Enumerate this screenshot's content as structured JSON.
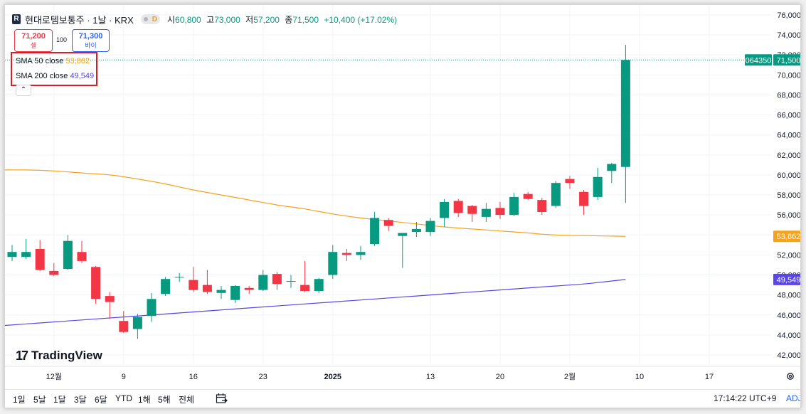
{
  "header": {
    "title": "현대로템보통주 · 1날 · KRX",
    "exchange_badge": "D",
    "open_label": "시",
    "open_value": "60,800",
    "high_label": "고",
    "high_value": "73,000",
    "low_label": "저",
    "low_value": "57,200",
    "close_label": "종",
    "close_value": "71,500",
    "change": "+10,400 (+17.02%)"
  },
  "trade": {
    "sell_price": "71,200",
    "sell_label": "셀",
    "spread": "100",
    "buy_price": "71,300",
    "buy_label": "바이"
  },
  "legend": {
    "sma50_name": "SMA 50 close",
    "sma50_value": "53,862",
    "sma50_color": "#f7a21b",
    "sma200_name": "SMA 200 close",
    "sma200_value": "49,549",
    "sma200_color": "#5b45e8"
  },
  "price_tags": {
    "countdown": "064350",
    "last": "71,500",
    "sma50": "53,862",
    "sma200": "49,549"
  },
  "brand": {
    "name": "TradingView"
  },
  "bottom_bar": {
    "ranges": [
      "1일",
      "5날",
      "1달",
      "3달",
      "6달",
      "YTD",
      "1해",
      "5해",
      "전체"
    ],
    "time": "17:14:22 UTC+9",
    "adj": "ADJ"
  },
  "colors": {
    "up": "#089981",
    "down": "#f23645",
    "sma50": "#f7a21b",
    "sma200": "#5b45e8"
  },
  "chart_data": {
    "type": "candlestick",
    "ylim": [
      41000,
      76600
    ],
    "y_ticks": [
      42000,
      44000,
      46000,
      48000,
      50000,
      52000,
      54000,
      56000,
      58000,
      60000,
      62000,
      64000,
      66000,
      68000,
      70000,
      72000,
      74000,
      76000
    ],
    "y_tick_labels": [
      "42,000",
      "44,000",
      "46,000",
      "48,000",
      "50,000",
      "52,000",
      "54,000",
      "56,000",
      "58,000",
      "60,000",
      "62,000",
      "64,000",
      "66,000",
      "68,000",
      "70,000",
      "72,000",
      "74,000",
      "76,000"
    ],
    "x_ticks": [
      {
        "label": "12월",
        "bar": 3
      },
      {
        "label": "9",
        "bar": 8
      },
      {
        "label": "16",
        "bar": 13
      },
      {
        "label": "23",
        "bar": 18
      },
      {
        "label": "2025",
        "bar": 23,
        "bold": true
      },
      {
        "label": "13",
        "bar": 30
      },
      {
        "label": "20",
        "bar": 35
      },
      {
        "label": "2월",
        "bar": 40
      },
      {
        "label": "10",
        "bar": 45
      },
      {
        "label": "17",
        "bar": 50
      }
    ],
    "candles": [
      {
        "o": 51800,
        "h": 53000,
        "l": 51400,
        "c": 52300
      },
      {
        "o": 51800,
        "h": 53600,
        "l": 51600,
        "c": 52300
      },
      {
        "o": 52600,
        "h": 53500,
        "l": 50400,
        "c": 50500
      },
      {
        "o": 50400,
        "h": 51200,
        "l": 49900,
        "c": 50000
      },
      {
        "o": 50600,
        "h": 54000,
        "l": 50500,
        "c": 53400
      },
      {
        "o": 52300,
        "h": 53400,
        "l": 51200,
        "c": 51400
      },
      {
        "o": 50800,
        "h": 50900,
        "l": 47100,
        "c": 47600
      },
      {
        "o": 47900,
        "h": 48300,
        "l": 45600,
        "c": 47300
      },
      {
        "o": 45400,
        "h": 46400,
        "l": 44200,
        "c": 44300
      },
      {
        "o": 44600,
        "h": 46100,
        "l": 43600,
        "c": 45800
      },
      {
        "o": 45900,
        "h": 48200,
        "l": 45300,
        "c": 47600
      },
      {
        "o": 48100,
        "h": 49800,
        "l": 47900,
        "c": 49600
      },
      {
        "o": 49800,
        "h": 50200,
        "l": 49300,
        "c": 49800
      },
      {
        "o": 49500,
        "h": 50800,
        "l": 48300,
        "c": 48500
      },
      {
        "o": 49000,
        "h": 50500,
        "l": 48100,
        "c": 48300
      },
      {
        "o": 48200,
        "h": 48900,
        "l": 47600,
        "c": 48500
      },
      {
        "o": 47500,
        "h": 49000,
        "l": 47200,
        "c": 48900
      },
      {
        "o": 48700,
        "h": 48900,
        "l": 48100,
        "c": 48500
      },
      {
        "o": 48500,
        "h": 50500,
        "l": 48400,
        "c": 50000
      },
      {
        "o": 50100,
        "h": 50300,
        "l": 48500,
        "c": 49100
      },
      {
        "o": 49400,
        "h": 50000,
        "l": 48700,
        "c": 49400
      },
      {
        "o": 49000,
        "h": 51400,
        "l": 48300,
        "c": 48400
      },
      {
        "o": 48400,
        "h": 49700,
        "l": 48200,
        "c": 49600
      },
      {
        "o": 50000,
        "h": 53000,
        "l": 49600,
        "c": 52300
      },
      {
        "o": 52200,
        "h": 52600,
        "l": 51400,
        "c": 52000
      },
      {
        "o": 52000,
        "h": 52900,
        "l": 51500,
        "c": 52300
      },
      {
        "o": 53100,
        "h": 56300,
        "l": 52900,
        "c": 55700
      },
      {
        "o": 55500,
        "h": 55700,
        "l": 54400,
        "c": 54900
      },
      {
        "o": 53900,
        "h": 54100,
        "l": 50700,
        "c": 54200
      },
      {
        "o": 54300,
        "h": 55300,
        "l": 53800,
        "c": 54600
      },
      {
        "o": 54300,
        "h": 55700,
        "l": 53900,
        "c": 55400
      },
      {
        "o": 55700,
        "h": 57600,
        "l": 54800,
        "c": 57300
      },
      {
        "o": 57400,
        "h": 57600,
        "l": 55800,
        "c": 56200
      },
      {
        "o": 56900,
        "h": 57000,
        "l": 55300,
        "c": 56100
      },
      {
        "o": 55800,
        "h": 57200,
        "l": 55300,
        "c": 56600
      },
      {
        "o": 56700,
        "h": 57300,
        "l": 55600,
        "c": 56000
      },
      {
        "o": 56000,
        "h": 58200,
        "l": 55900,
        "c": 57800
      },
      {
        "o": 58100,
        "h": 58300,
        "l": 57500,
        "c": 57600
      },
      {
        "o": 57500,
        "h": 57700,
        "l": 56000,
        "c": 56300
      },
      {
        "o": 56900,
        "h": 59400,
        "l": 56700,
        "c": 59200
      },
      {
        "o": 59600,
        "h": 59900,
        "l": 58600,
        "c": 59200
      },
      {
        "o": 58300,
        "h": 58500,
        "l": 56000,
        "c": 56900
      },
      {
        "o": 57800,
        "h": 60700,
        "l": 57500,
        "c": 59800
      },
      {
        "o": 60400,
        "h": 61200,
        "l": 59200,
        "c": 61100
      },
      {
        "o": 60800,
        "h": 73000,
        "l": 57200,
        "c": 71500
      }
    ],
    "sma50": [
      60500,
      60500,
      60400,
      60200,
      60000,
      59600,
      59100,
      58500,
      58000,
      57500,
      57000,
      56600,
      56100,
      55700,
      55400,
      55100,
      54800,
      54600,
      54400,
      54200,
      54000,
      53862
    ],
    "sma50_bars": [
      -1,
      1,
      3,
      5,
      7,
      9,
      11,
      13,
      15,
      17,
      19,
      21,
      23,
      25,
      27,
      29,
      31,
      33,
      35,
      37,
      39,
      44
    ],
    "sma200": [
      44900,
      45200,
      45500,
      45800,
      46100,
      46400,
      46700,
      47000,
      47300,
      47600,
      47900,
      48200,
      48500,
      48800,
      49100,
      49400,
      49549
    ],
    "sma200_bars": [
      -1,
      2,
      5,
      8,
      11,
      14,
      17,
      20,
      23,
      26,
      29,
      32,
      35,
      38,
      41,
      43,
      44
    ],
    "legend": [
      "SMA 50 close",
      "SMA 200 close"
    ]
  }
}
